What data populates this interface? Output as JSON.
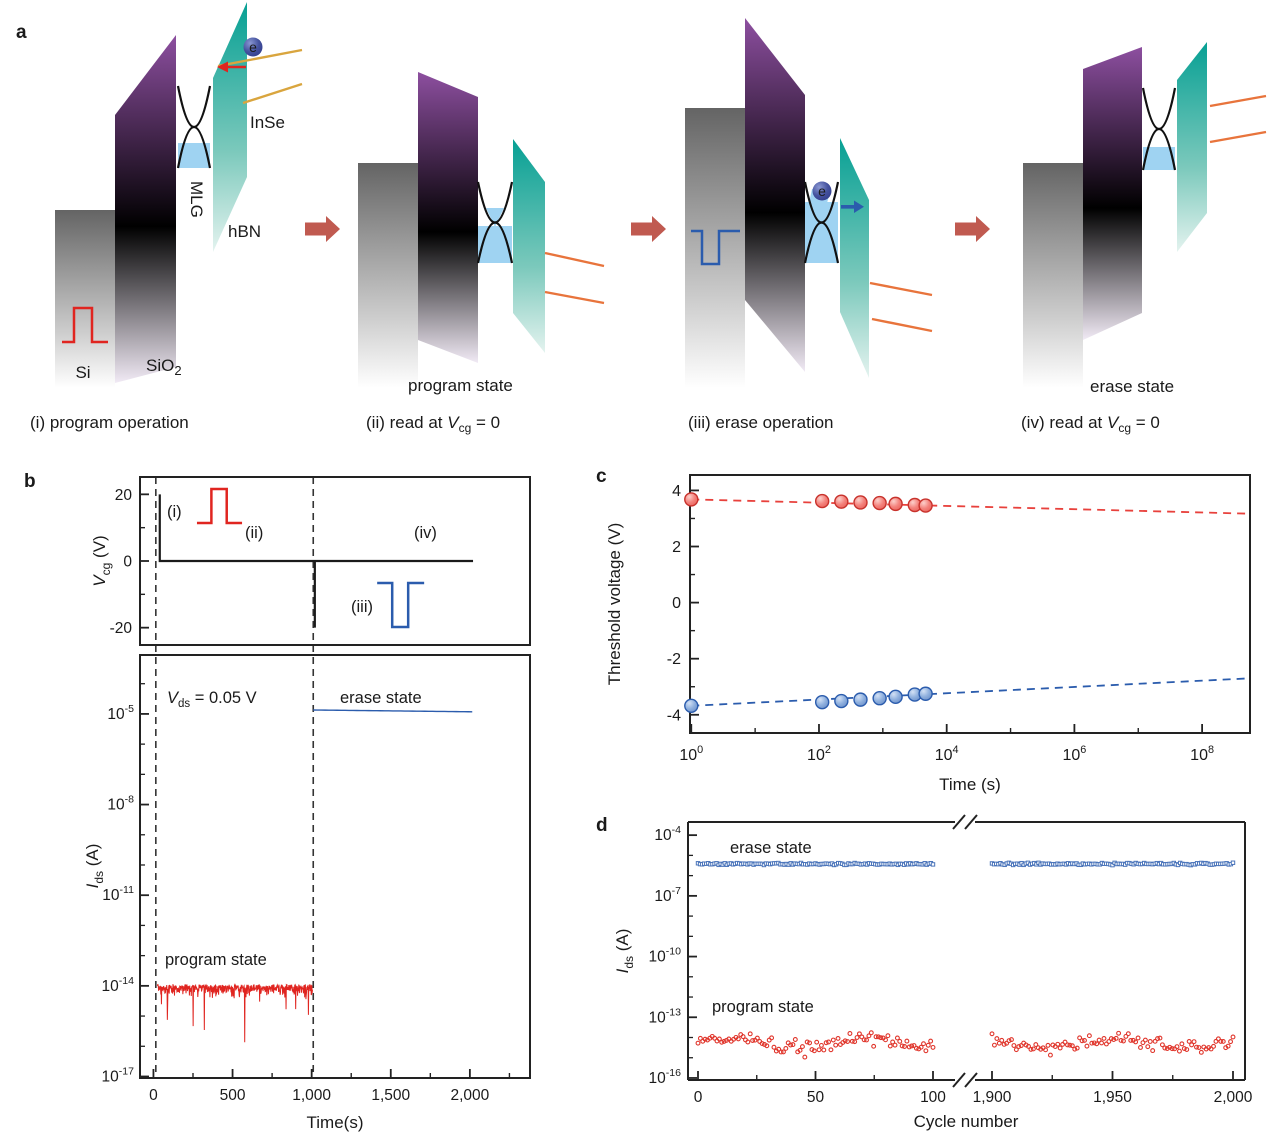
{
  "panels": {
    "a": "a",
    "b": "b",
    "c": "c",
    "d": "d"
  },
  "colors": {
    "program_red": "#e02520",
    "erase_blue": "#2b5cad",
    "waveform_black": "#1a1a1a",
    "transition_arrow": "#c05a50",
    "inse_gold": "#d9a53e",
    "inse_orange": "#e8743c",
    "mlg_fill": "#9fd3f2",
    "red_point_edge": "#c8322c",
    "blue_point_edge": "#2b5cad"
  },
  "panel_a": {
    "layers": {
      "si": "Si",
      "sio2": {
        "pre": "SiO",
        "sub": "2"
      },
      "mlg": "MLG",
      "hbn": "hBN",
      "inse": "InSe"
    },
    "electron": "e",
    "states": {
      "program": "program state",
      "erase": "erase state"
    },
    "captions": {
      "i": "(i) program operation",
      "ii": {
        "pre": "(ii) read at ",
        "v": "V",
        "sub": "cg",
        "post": " = 0"
      },
      "iii": "(iii) erase operation",
      "iv": {
        "pre": "(iv) read at ",
        "v": "V",
        "sub": "cg",
        "post": " = 0"
      }
    }
  },
  "chart_data": [
    {
      "panel": "b",
      "type": "line",
      "vcg": {
        "ylabel": {
          "v": "V",
          "sub": "cg",
          "post": " (V)"
        },
        "ylim": [
          -25.2,
          25.2
        ],
        "yticks": [
          {
            "v": 20,
            "label": "20"
          },
          {
            "v": 0,
            "label": "0"
          },
          {
            "v": -20,
            "label": "-20"
          }
        ],
        "yticks_minor": [
          10,
          -10
        ],
        "xlim": [
          -85,
          2380
        ],
        "read_level": 0,
        "zero_line_t": [
          40,
          2020
        ],
        "program_pulse": {
          "t": 40,
          "amplitude_V": 20
        },
        "erase_pulse": {
          "t": 1020,
          "amplitude_V": -20
        },
        "dashed_event_times": [
          15,
          1010
        ],
        "labels": {
          "i": "(i)",
          "ii": "(ii)",
          "iii": "(iii)",
          "iv": "(iv)"
        },
        "pulse_glyphs": {
          "program": {
            "t0": 275,
            "t1": 560,
            "base_V": 11.4,
            "peak_V": 21.6
          },
          "erase": {
            "t0": 1414,
            "t1": 1711,
            "base_V": -6.6,
            "peak_V": -19.8
          }
        }
      },
      "ids": {
        "ylabel": {
          "v": "I",
          "sub": "ds",
          "post": " (A)"
        },
        "ylog_lim": [
          -17.05,
          -3.05
        ],
        "yticks_exp": [
          -5,
          -8,
          -11,
          -14,
          -17
        ],
        "xticks": [
          {
            "v": 0,
            "label": "0"
          },
          {
            "v": 500,
            "label": "500"
          },
          {
            "v": 1000,
            "label": "1,000"
          },
          {
            "v": 1500,
            "label": "1,500"
          },
          {
            "v": 2000,
            "label": "2,000"
          }
        ],
        "xticks_minor": [
          250,
          750,
          1250,
          1750,
          2250
        ],
        "xlabel": "Time(s)",
        "vds_annotation": {
          "v": "V",
          "sub": "ds",
          "post": " = 0.05 V"
        },
        "series": [
          {
            "name": "program state",
            "color": "#e02520",
            "kind": "noisy_line",
            "t_start": 25,
            "t_end": 1005,
            "n": 500,
            "log_mean": -14.2,
            "band_top": -13.95,
            "spread": 0.33,
            "spike_prob": 0.05,
            "spike_max_depth": 2.3,
            "clamp_min": -16.55,
            "seed": 11
          },
          {
            "name": "erase state",
            "color": "#2b5cad",
            "kind": "line",
            "t_start": 1010,
            "t_end": 2015,
            "log_start": -4.87,
            "log_end": -4.93
          }
        ]
      }
    },
    {
      "panel": "c",
      "type": "scatter",
      "xlabel": "Time (s)",
      "ylabel": "Threshold voltage (V)",
      "xlog": true,
      "xlim_exp": [
        -0.02,
        8.75
      ],
      "xticks_exp": [
        0,
        2,
        4,
        6,
        8
      ],
      "xticks_minor_exp": [
        1,
        3,
        5,
        7
      ],
      "ylim": [
        -4.65,
        4.55
      ],
      "yticks": [
        4,
        2,
        0,
        -2,
        -4
      ],
      "yticks_minor": [
        3,
        1,
        -1,
        -3
      ],
      "legend_position": "none",
      "grid": false,
      "series": [
        {
          "name": "program-state threshold",
          "fill": "#f4837d",
          "edge": "#c8322c",
          "log_t": [
            0,
            2.05,
            2.35,
            2.65,
            2.95,
            3.2,
            3.5,
            3.67
          ],
          "v": [
            3.68,
            3.62,
            3.6,
            3.57,
            3.55,
            3.52,
            3.48,
            3.46
          ],
          "trend_dash": {
            "from": [
              0,
              3.68
            ],
            "to": [
              8.75,
              3.17
            ],
            "color": "#e8413c"
          }
        },
        {
          "name": "erase-state threshold",
          "fill": "#8fb0de",
          "edge": "#2b5cad",
          "log_t": [
            0,
            2.05,
            2.35,
            2.65,
            2.95,
            3.2,
            3.5,
            3.67
          ],
          "v": [
            -3.68,
            -3.55,
            -3.51,
            -3.46,
            -3.41,
            -3.36,
            -3.28,
            -3.25
          ],
          "trend_dash": {
            "from": [
              0,
              -3.68
            ],
            "to": [
              8.75,
              -2.7
            ],
            "color": "#2b5cad"
          }
        }
      ]
    },
    {
      "panel": "d",
      "type": "scatter",
      "xlabel": "Cycle number",
      "ylabel": {
        "v": "I",
        "sub": "ds",
        "post": " (A)"
      },
      "ylog_lim": [
        -16.1,
        -3.35
      ],
      "yticks_exp": [
        -4,
        -7,
        -10,
        -13,
        -16
      ],
      "axis_break": {
        "left_range": [
          0,
          100
        ],
        "right_range": [
          1900,
          2000
        ]
      },
      "xticks": [
        {
          "v": 0,
          "label": "0"
        },
        {
          "v": 50,
          "label": "50"
        },
        {
          "v": 100,
          "label": "100"
        },
        {
          "v": 1900,
          "label": "1,900"
        },
        {
          "v": 1950,
          "label": "1,950"
        },
        {
          "v": 2000,
          "label": "2,000"
        }
      ],
      "xticks_minor": [
        25,
        75,
        1925,
        1975
      ],
      "series": [
        {
          "name": "erase state",
          "color": "#4a74ba",
          "marker": "square-open",
          "log_level": -5.42,
          "jitter": 0.065,
          "points_per_segment": 115,
          "seed": 5
        },
        {
          "name": "program state",
          "color": "#e0352b",
          "marker": "circle-open",
          "log_level": -14.3,
          "jitter": 0.42,
          "wander": 0.3,
          "points_per_segment": 100,
          "seed": 9,
          "clamp": [
            -15.55,
            -13.05
          ]
        }
      ]
    }
  ]
}
